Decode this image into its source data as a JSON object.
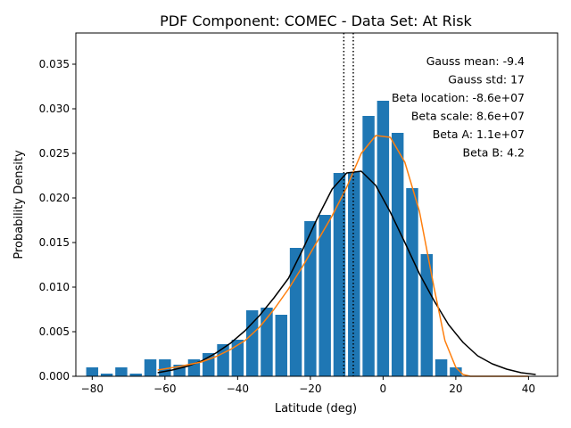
{
  "chart_data": {
    "type": "bar",
    "title": "PDF Component: COMEC - Data Set: At Risk",
    "xlabel": "Latitude (deg)",
    "ylabel": "Probability Density",
    "xlim": [
      -84.5,
      48
    ],
    "ylim": [
      0,
      0.0385
    ],
    "xticks": [
      -80,
      -60,
      -40,
      -20,
      0,
      20,
      40
    ],
    "yticks": [
      0.0,
      0.005,
      0.01,
      0.015,
      0.02,
      0.025,
      0.03,
      0.035
    ],
    "xtick_labels": [
      "−80",
      "−60",
      "−40",
      "−20",
      "0",
      "20",
      "40"
    ],
    "ytick_labels": [
      "0.000",
      "0.005",
      "0.010",
      "0.015",
      "0.020",
      "0.025",
      "0.030",
      "0.035"
    ],
    "bar_width": 3.3,
    "bar_color": "#1f77b4",
    "histogram": {
      "centers": [
        -80,
        -76,
        -72,
        -68,
        -64,
        -60,
        -56,
        -52,
        -48,
        -44,
        -40,
        -36,
        -32,
        -28,
        -24,
        -20,
        -16,
        -12,
        -8,
        -4,
        0,
        4,
        8,
        12,
        16,
        20
      ],
      "values": [
        0.001,
        0.0003,
        0.001,
        0.0003,
        0.0019,
        0.0019,
        0.0013,
        0.0019,
        0.0026,
        0.0036,
        0.0041,
        0.0074,
        0.0077,
        0.0069,
        0.0144,
        0.0174,
        0.0181,
        0.0228,
        0.0229,
        0.0292,
        0.0309,
        0.0273,
        0.0211,
        0.0137,
        0.0019,
        0.001
      ]
    },
    "series": [
      {
        "color": "#000000",
        "x": [
          -62,
          -58,
          -54,
          -50,
          -46,
          -42,
          -38,
          -34,
          -30,
          -26,
          -22,
          -18,
          -14,
          -10,
          -6,
          -2,
          2,
          6,
          10,
          14,
          18,
          22,
          26,
          30,
          34,
          38,
          42
        ],
        "y": [
          0.0004,
          0.0007,
          0.0011,
          0.0017,
          0.0026,
          0.0037,
          0.0051,
          0.0068,
          0.0088,
          0.011,
          0.0143,
          0.0178,
          0.021,
          0.0228,
          0.023,
          0.0214,
          0.0184,
          0.015,
          0.0115,
          0.0085,
          0.0058,
          0.0038,
          0.0023,
          0.0014,
          0.0008,
          0.0004,
          0.0002
        ]
      },
      {
        "color": "#ff7f0e",
        "x": [
          -62,
          -56,
          -50,
          -46,
          -42,
          -38,
          -34,
          -30,
          -26,
          -22,
          -18,
          -14,
          -10,
          -6,
          -2,
          2,
          6,
          10,
          14,
          17,
          20,
          22,
          24,
          30,
          40
        ],
        "y": [
          0.0007,
          0.0011,
          0.0016,
          0.0022,
          0.003,
          0.004,
          0.0055,
          0.0075,
          0.0098,
          0.0124,
          0.0152,
          0.018,
          0.0212,
          0.025,
          0.027,
          0.0268,
          0.024,
          0.0185,
          0.01,
          0.004,
          0.001,
          0.0002,
          0.0,
          0.0,
          0.0
        ]
      }
    ],
    "vlines": [
      {
        "x": -10.8,
        "color": "#000000",
        "style": "dotted"
      },
      {
        "x": -8.2,
        "color": "#000000",
        "style": "dotted"
      }
    ],
    "annotations": [
      "Gauss mean: -9.4",
      "Gauss std: 17",
      "Beta location: -8.6e+07",
      "Beta scale: 8.6e+07",
      "Beta A: 1.1e+07",
      "Beta B: 4.2"
    ],
    "annotation_placement": "top-right",
    "grid": false,
    "legend": false
  }
}
